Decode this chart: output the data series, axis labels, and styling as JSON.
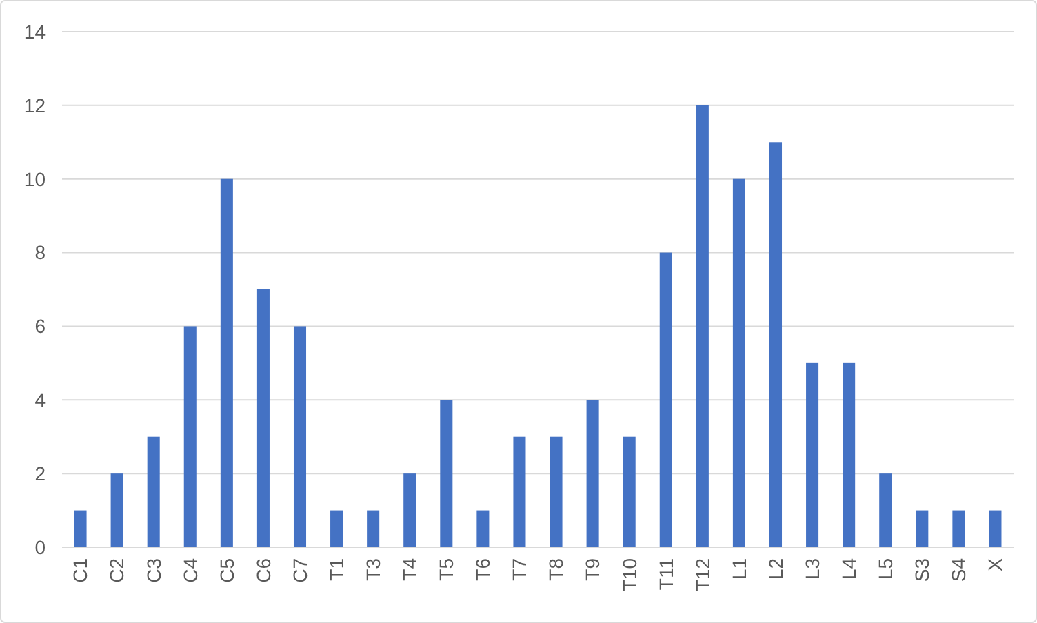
{
  "chart_data": {
    "type": "bar",
    "categories": [
      "C1",
      "C2",
      "C3",
      "C4",
      "C5",
      "C6",
      "C7",
      "T1",
      "T3",
      "T4",
      "T5",
      "T6",
      "T7",
      "T8",
      "T9",
      "T10",
      "T11",
      "T12",
      "L1",
      "L2",
      "L3",
      "L4",
      "L5",
      "S3",
      "S4",
      "X"
    ],
    "values": [
      1,
      2,
      3,
      6,
      10,
      7,
      6,
      1,
      1,
      2,
      4,
      1,
      3,
      3,
      4,
      3,
      8,
      12,
      10,
      11,
      5,
      5,
      2,
      1,
      1,
      1
    ],
    "color": "#4472c4",
    "ylim": [
      0,
      14
    ],
    "yticks": [
      0,
      2,
      4,
      6,
      8,
      10,
      12,
      14
    ],
    "grid": "y"
  }
}
